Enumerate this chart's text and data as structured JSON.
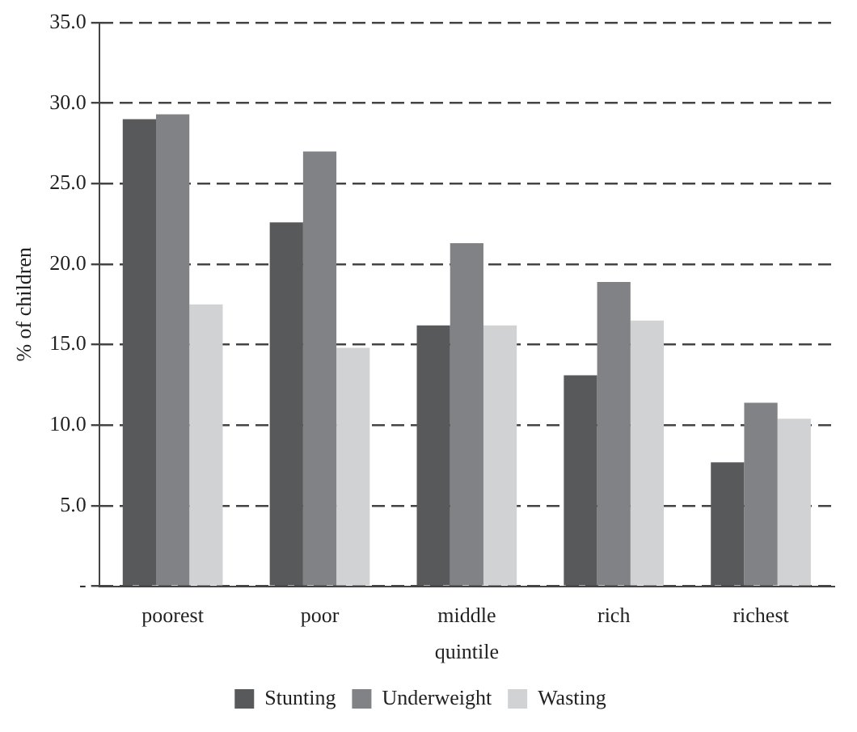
{
  "chart_data": {
    "type": "bar",
    "xlabel": "quintile",
    "ylabel": "% of children",
    "categories": [
      "poorest",
      "poor",
      "middle",
      "rich",
      "richest"
    ],
    "series": [
      {
        "name": "Stunting",
        "color": "#58595b",
        "values": [
          29.0,
          22.6,
          16.2,
          13.1,
          7.7
        ]
      },
      {
        "name": "Underweight",
        "color": "#808285",
        "values": [
          29.3,
          27.0,
          21.3,
          18.9,
          11.4
        ]
      },
      {
        "name": "Wasting",
        "color": "#d1d2d4",
        "values": [
          17.5,
          14.8,
          16.2,
          16.5,
          10.4
        ]
      }
    ],
    "ylim": [
      0,
      35
    ],
    "yticks": [
      {
        "value": 0,
        "label": "-"
      },
      {
        "value": 5,
        "label": "5.0"
      },
      {
        "value": 10,
        "label": "10.0"
      },
      {
        "value": 15,
        "label": "15.0"
      },
      {
        "value": 20,
        "label": "20.0"
      },
      {
        "value": 25,
        "label": "25.0"
      },
      {
        "value": 30,
        "label": "30.0"
      },
      {
        "value": 35,
        "label": "35.0"
      }
    ],
    "grid": "y",
    "line_style": "dashed",
    "legend": "bottom"
  }
}
